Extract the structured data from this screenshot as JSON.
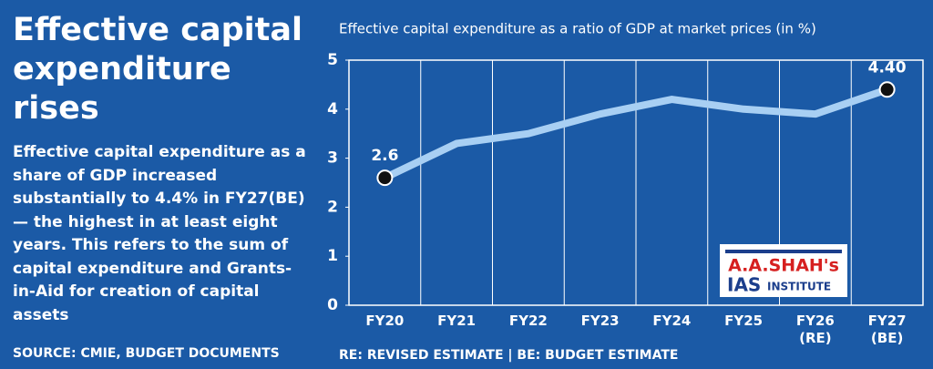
{
  "header": {
    "title": "Effective capital expenditure rises",
    "description": "Effective capital expenditure as a share of GDP increased substantially to 4.4% in FY27(BE) — the highest in at least eight years. This refers to the sum of capital expenditure and Grants-in-Aid for creation of capital assets",
    "source": "SOURCE: CMIE, BUDGET DOCUMENTS"
  },
  "logo": {
    "line1": "A.A.SHAH's",
    "line2": "IAS",
    "line3": "INSTITUTE"
  },
  "chart_data": {
    "type": "line",
    "title": "Effective capital expenditure as a ratio of GDP at market prices (in %)",
    "note": "RE: REVISED ESTIMATE | BE: BUDGET ESTIMATE",
    "categories": [
      "FY20",
      "FY21",
      "FY22",
      "FY23",
      "FY24",
      "FY25",
      "FY26 (RE)",
      "FY27 (BE)"
    ],
    "values": [
      2.6,
      3.3,
      3.5,
      3.9,
      4.2,
      4.0,
      3.9,
      4.4
    ],
    "value_labels": [
      "2.6",
      null,
      null,
      null,
      null,
      null,
      null,
      "4.40"
    ],
    "color": "#a8cff3",
    "ylim": [
      0,
      5
    ],
    "yticks": [
      0,
      1,
      2,
      3,
      4,
      5
    ]
  }
}
